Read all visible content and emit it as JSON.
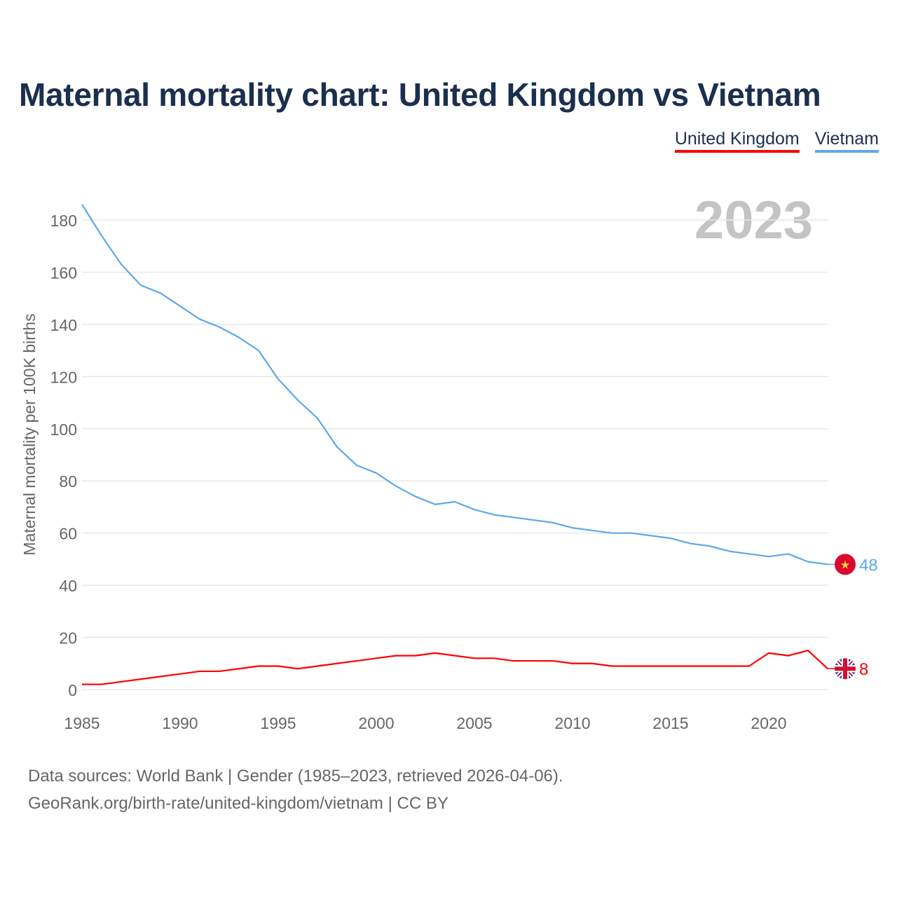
{
  "title": "Maternal mortality chart: United Kingdom vs Vietnam",
  "footer": {
    "line1": "Data sources: World Bank | Gender (1985–2023, retrieved 2026-04-06).",
    "line2": "GeoRank.org/birth-rate/united-kingdom/vietnam | CC BY"
  },
  "chart_data": {
    "type": "line",
    "title": "Maternal mortality chart: United Kingdom vs Vietnam",
    "ylabel": "Maternal mortality per 100K births",
    "xlabel": "",
    "year_label": "2023",
    "xlim": [
      1985,
      2023
    ],
    "ylim": [
      0,
      180
    ],
    "xticks": [
      1985,
      1990,
      1995,
      2000,
      2005,
      2010,
      2015,
      2020
    ],
    "yticks": [
      0,
      20,
      40,
      60,
      80,
      100,
      120,
      140,
      160,
      180
    ],
    "legend_position": "top-right",
    "x": [
      1985,
      1986,
      1987,
      1988,
      1989,
      1990,
      1991,
      1992,
      1993,
      1994,
      1995,
      1996,
      1997,
      1998,
      1999,
      2000,
      2001,
      2002,
      2003,
      2004,
      2005,
      2006,
      2007,
      2008,
      2009,
      2010,
      2011,
      2012,
      2013,
      2014,
      2015,
      2016,
      2017,
      2018,
      2019,
      2020,
      2021,
      2022,
      2023
    ],
    "series": [
      {
        "name": "United Kingdom",
        "color": "#ff0000",
        "end_label": "8",
        "flag": "uk-flag",
        "values": [
          2,
          2,
          3,
          4,
          5,
          6,
          7,
          7,
          8,
          9,
          9,
          8,
          9,
          10,
          11,
          12,
          13,
          13,
          14,
          13,
          12,
          12,
          11,
          11,
          11,
          10,
          10,
          9,
          9,
          9,
          9,
          9,
          9,
          9,
          9,
          14,
          13,
          15,
          8
        ]
      },
      {
        "name": "Vietnam",
        "color": "#5ea8ea",
        "end_label": "48",
        "flag": "vietnam-flag",
        "values": [
          186,
          174,
          163,
          155,
          152,
          147,
          142,
          139,
          135,
          130,
          119,
          111,
          104,
          93,
          86,
          83,
          78,
          74,
          71,
          72,
          69,
          67,
          66,
          65,
          64,
          62,
          61,
          60,
          60,
          59,
          58,
          56,
          55,
          53,
          52,
          51,
          52,
          49,
          48
        ]
      }
    ]
  }
}
